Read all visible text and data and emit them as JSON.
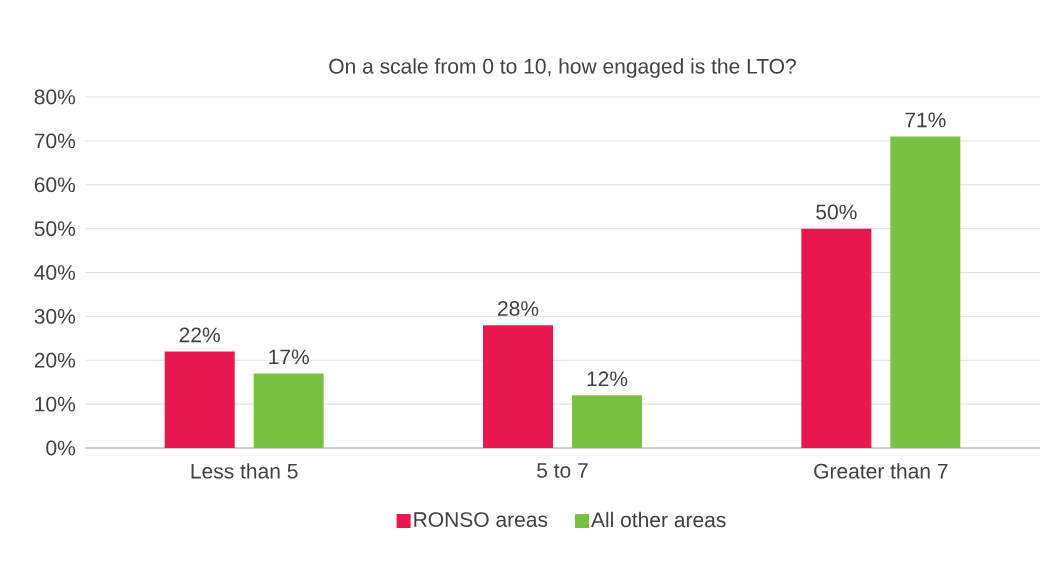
{
  "chart_data": {
    "type": "bar",
    "title": "On a scale from 0 to 10, how engaged is the LTO?",
    "categories": [
      "Less than 5",
      "5 to 7",
      "Greater than 7"
    ],
    "series": [
      {
        "name": "RONSO areas",
        "color": "#e8174f",
        "values": [
          22,
          28,
          50
        ],
        "value_labels": [
          "22%",
          "28%",
          "50%"
        ]
      },
      {
        "name": "All other areas",
        "color": "#7ac143",
        "values": [
          17,
          12,
          71
        ],
        "value_labels": [
          "17%",
          "12%",
          "71%"
        ]
      }
    ],
    "ylim": [
      0,
      80
    ],
    "yticks": [
      {
        "value": 0,
        "label": "0%"
      },
      {
        "value": 10,
        "label": "10%"
      },
      {
        "value": 20,
        "label": "20%"
      },
      {
        "value": 30,
        "label": "30%"
      },
      {
        "value": 40,
        "label": "40%"
      },
      {
        "value": 50,
        "label": "50%"
      },
      {
        "value": 60,
        "label": "60%"
      },
      {
        "value": 70,
        "label": "70%"
      },
      {
        "value": 80,
        "label": "80%"
      }
    ],
    "grid": "y",
    "legend": "bottom"
  }
}
